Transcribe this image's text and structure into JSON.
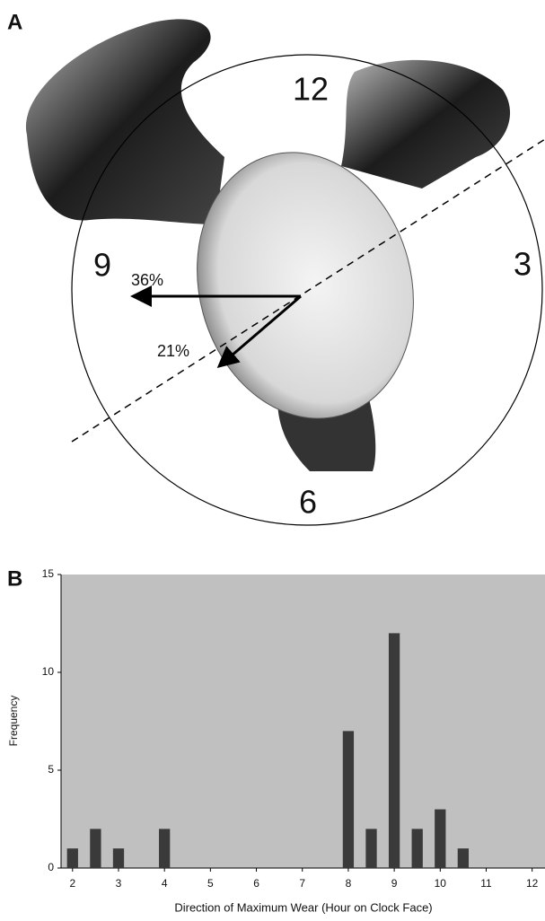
{
  "figure_a": {
    "panel_label": "A",
    "clock_labels": {
      "twelve": "12",
      "three": "3",
      "six": "6",
      "nine": "9"
    },
    "arrow_labels": [
      "36%",
      "21%"
    ]
  },
  "chart_data": {
    "type": "bar",
    "panel_label": "B",
    "x": [
      2,
      2.5,
      3,
      4,
      8,
      8.5,
      9,
      9.5,
      10,
      10.5
    ],
    "values": [
      1,
      2,
      1,
      2,
      7,
      2,
      12,
      2,
      3,
      1
    ],
    "color": "#3a3a3a",
    "xlabel": "Direction of Maximum Wear (Hour on Clock Face)",
    "ylabel": "Frequency",
    "xlim": [
      1.75,
      12.28
    ],
    "xticks": [
      2,
      3,
      4,
      5,
      6,
      7,
      8,
      9,
      10,
      11,
      12
    ],
    "ylim": [
      0,
      15
    ],
    "yticks": [
      0,
      5,
      10,
      15
    ],
    "grid": false
  }
}
